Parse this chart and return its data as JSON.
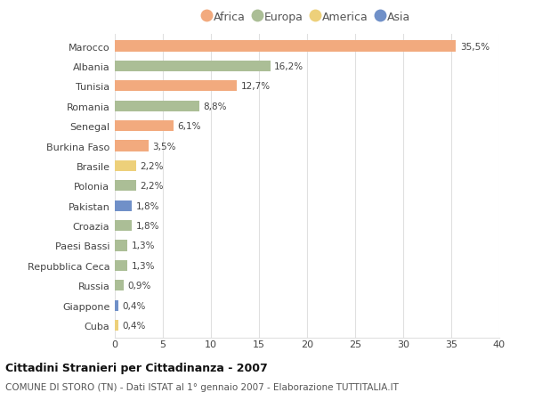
{
  "categories": [
    "Marocco",
    "Albania",
    "Tunisia",
    "Romania",
    "Senegal",
    "Burkina Faso",
    "Brasile",
    "Polonia",
    "Pakistan",
    "Croazia",
    "Paesi Bassi",
    "Repubblica Ceca",
    "Russia",
    "Giappone",
    "Cuba"
  ],
  "values": [
    35.5,
    16.2,
    12.7,
    8.8,
    6.1,
    3.5,
    2.2,
    2.2,
    1.8,
    1.8,
    1.3,
    1.3,
    0.9,
    0.4,
    0.4
  ],
  "labels": [
    "35,5%",
    "16,2%",
    "12,7%",
    "8,8%",
    "6,1%",
    "3,5%",
    "2,2%",
    "2,2%",
    "1,8%",
    "1,8%",
    "1,3%",
    "1,3%",
    "0,9%",
    "0,4%",
    "0,4%"
  ],
  "colors": [
    "#F2AA7E",
    "#ABBE96",
    "#F2AA7E",
    "#ABBE96",
    "#F2AA7E",
    "#F2AA7E",
    "#EDD07A",
    "#ABBE96",
    "#7090C8",
    "#ABBE96",
    "#ABBE96",
    "#ABBE96",
    "#ABBE96",
    "#7090C8",
    "#EDD07A"
  ],
  "legend_labels": [
    "Africa",
    "Europa",
    "America",
    "Asia"
  ],
  "legend_colors": [
    "#F2AA7E",
    "#ABBE96",
    "#EDD07A",
    "#7090C8"
  ],
  "xlim": [
    0,
    40
  ],
  "xticks": [
    0,
    5,
    10,
    15,
    20,
    25,
    30,
    35,
    40
  ],
  "title": "Cittadini Stranieri per Cittadinanza - 2007",
  "subtitle": "COMUNE DI STORO (TN) - Dati ISTAT al 1° gennaio 2007 - Elaborazione TUTTITALIA.IT",
  "background_color": "#ffffff",
  "grid_color": "#e0e0e0"
}
